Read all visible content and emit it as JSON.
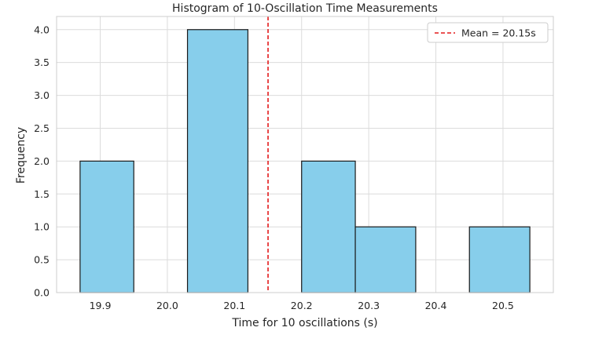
{
  "chart_data": {
    "type": "bar",
    "title": "Histogram of 10-Oscillation Time Measurements",
    "xlabel": "Time for 10 oscillations (s)",
    "ylabel": "Frequency",
    "xlim": [
      19.835,
      20.575
    ],
    "ylim": [
      0,
      4.2
    ],
    "xticks": [
      "19.9",
      "20.0",
      "20.1",
      "20.2",
      "20.3",
      "20.4",
      "20.5"
    ],
    "xtick_values": [
      19.9,
      20.0,
      20.1,
      20.2,
      20.3,
      20.4,
      20.5
    ],
    "yticks": [
      "0.0",
      "0.5",
      "1.0",
      "1.5",
      "2.0",
      "2.5",
      "3.0",
      "3.5",
      "4.0"
    ],
    "ytick_values": [
      0,
      0.5,
      1.0,
      1.5,
      2.0,
      2.5,
      3.0,
      3.5,
      4.0
    ],
    "bins": [
      {
        "start": 19.87,
        "end": 19.95,
        "count": 2
      },
      {
        "start": 19.95,
        "end": 20.03,
        "count": 0
      },
      {
        "start": 20.03,
        "end": 20.12,
        "count": 4
      },
      {
        "start": 20.12,
        "end": 20.2,
        "count": 0
      },
      {
        "start": 20.2,
        "end": 20.28,
        "count": 2
      },
      {
        "start": 20.28,
        "end": 20.37,
        "count": 1
      },
      {
        "start": 20.37,
        "end": 20.45,
        "count": 0
      },
      {
        "start": 20.45,
        "end": 20.54,
        "count": 1
      }
    ],
    "mean_line": {
      "value": 20.15,
      "label": "Mean = 20.15s",
      "color": "#e41a1c"
    },
    "bar_color": "#87ceeb",
    "bar_edge_color": "#1a1a1a",
    "grid": true,
    "legend": "top-right"
  }
}
